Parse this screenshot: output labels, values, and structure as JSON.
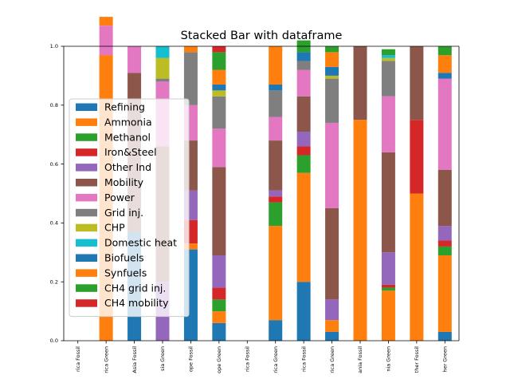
{
  "chart_data": {
    "type": "bar",
    "stacked": true,
    "title": "Stacked Bar with dataframe",
    "xlabel": "",
    "ylabel": "",
    "ylim": [
      0,
      1.0
    ],
    "yticks": [
      "0.0",
      "0.2",
      "0.4",
      "0.6",
      "0.8",
      "1.0"
    ],
    "legend_position": "left",
    "grid": false,
    "categories": [
      "rica Fossil",
      "rica Green",
      "Asia Fossil",
      "sia Green",
      "ope Fossil",
      "ope Green",
      "rica Fossil",
      "rica Green",
      "rica Fossil",
      "rica Green",
      "ania Fossil",
      "nia Green",
      "ther Fossil",
      "her Green"
    ],
    "series": [
      {
        "name": "Refining",
        "color": "#1f77b4",
        "values": [
          0,
          0,
          0.37,
          0,
          0.31,
          0.06,
          0,
          0.07,
          0.2,
          0.03,
          0,
          0,
          0,
          0.03
        ]
      },
      {
        "name": "Ammonia",
        "color": "#ff7f0e",
        "values": [
          0,
          0.97,
          0,
          0,
          0.02,
          0.04,
          0,
          0.32,
          0.37,
          0.04,
          0.75,
          0.17,
          0.5,
          0.26
        ]
      },
      {
        "name": "Methanol",
        "color": "#2ca02c",
        "values": [
          0,
          0,
          0,
          0,
          0,
          0.04,
          0,
          0.08,
          0.06,
          0,
          0,
          0.01,
          0,
          0.03
        ]
      },
      {
        "name": "Iron&Steel",
        "color": "#d62728",
        "values": [
          0,
          0,
          0,
          0,
          0.08,
          0.04,
          0,
          0.02,
          0.03,
          0,
          0,
          0.01,
          0.25,
          0.02
        ]
      },
      {
        "name": "Other Ind",
        "color": "#9467bd",
        "values": [
          0,
          0,
          0,
          0.2,
          0.1,
          0.11,
          0,
          0.02,
          0.05,
          0.07,
          0,
          0.11,
          0,
          0.05
        ]
      },
      {
        "name": "Mobility",
        "color": "#8c564b",
        "values": [
          0,
          0,
          0.54,
          0.46,
          0.17,
          0.3,
          0,
          0.17,
          0.12,
          0.31,
          0.25,
          0.34,
          0.25,
          0.19
        ]
      },
      {
        "name": "Power",
        "color": "#e377c2",
        "values": [
          0,
          0.1,
          0.09,
          0.22,
          0.12,
          0.13,
          0,
          0.08,
          0.09,
          0.29,
          0,
          0.19,
          0,
          0.31
        ]
      },
      {
        "name": "Grid inj.",
        "color": "#7f7f7f",
        "values": [
          0,
          0,
          0,
          0.01,
          0.18,
          0.11,
          0,
          0.09,
          0.03,
          0.15,
          0,
          0.12,
          0,
          0
        ]
      },
      {
        "name": "CHP",
        "color": "#bcbd22",
        "values": [
          0,
          0,
          0,
          0.07,
          0,
          0.02,
          0,
          0,
          0,
          0.01,
          0,
          0.01,
          0,
          0
        ]
      },
      {
        "name": "Domestic heat",
        "color": "#17becf",
        "values": [
          0,
          0,
          0,
          0.04,
          0,
          0,
          0,
          0,
          0,
          0,
          0,
          0.01,
          0,
          0
        ]
      },
      {
        "name": "Biofuels",
        "color": "#1f77b4",
        "values": [
          0,
          0,
          0,
          0,
          0,
          0.02,
          0,
          0.02,
          0.03,
          0.03,
          0,
          0,
          0,
          0.02
        ]
      },
      {
        "name": "Synfuels",
        "color": "#ff7f0e",
        "values": [
          0,
          0.03,
          0,
          0,
          0.02,
          0.05,
          0,
          0.13,
          0,
          0.05,
          0,
          0,
          0,
          0.06
        ]
      },
      {
        "name": "CH4 grid inj.",
        "color": "#2ca02c",
        "values": [
          0,
          0,
          0,
          0,
          0,
          0.06,
          0,
          0,
          0.04,
          0.02,
          0,
          0.02,
          0,
          0.03
        ]
      },
      {
        "name": "CH4 mobility",
        "color": "#d62728",
        "values": [
          0,
          0,
          0,
          0,
          0,
          0.02,
          0,
          0,
          0,
          0,
          0,
          0,
          0,
          0
        ]
      }
    ]
  }
}
